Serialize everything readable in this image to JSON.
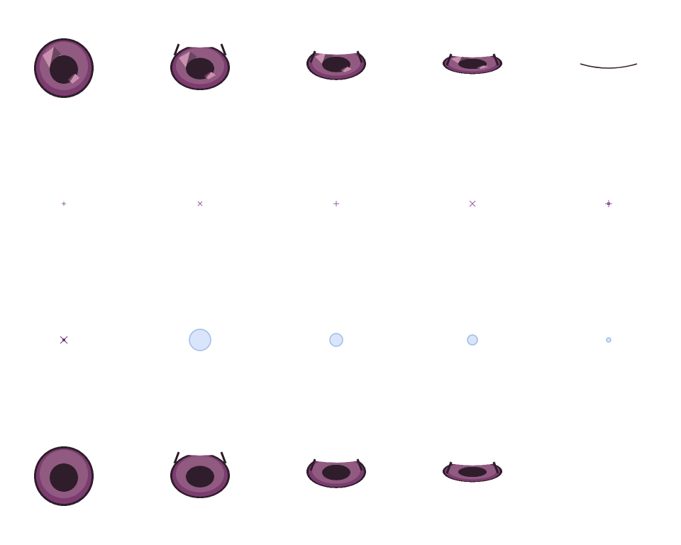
{
  "colors": {
    "outline": "#2e1e2a",
    "iris_outer": "#7c3c70",
    "iris_mid": "#915a80",
    "pupil": "#2f1d2b",
    "highlight_big": "#c891b0",
    "highlight_shadow": "#6e4560",
    "highlight_small": "#c98fb0",
    "sparkle": "#9a58a8",
    "sparkle_dark": "#6a3a70",
    "bubble_fill": "#d9e5fa",
    "bubble_stroke": "#9fbbe8",
    "background": "#ffffff"
  },
  "rows": [
    {
      "name": "eye-blink-highlighted",
      "frames": [
        {
          "kind": "eye",
          "open": 1.0,
          "highlights": true
        },
        {
          "kind": "eye",
          "open": 0.75,
          "highlights": true
        },
        {
          "kind": "eye",
          "open": 0.45,
          "highlights": true
        },
        {
          "kind": "eye",
          "open": 0.25,
          "highlights": true
        },
        {
          "kind": "closed"
        }
      ]
    },
    {
      "name": "sparkle-twinkle",
      "frames": [
        {
          "kind": "sparkle",
          "shape": "plus",
          "size": 1
        },
        {
          "kind": "sparkle",
          "shape": "cross",
          "size": 1
        },
        {
          "kind": "sparkle",
          "shape": "plus",
          "size": 2
        },
        {
          "kind": "sparkle",
          "shape": "cross",
          "size": 2
        },
        {
          "kind": "sparkle",
          "shape": "star",
          "size": 3
        }
      ]
    },
    {
      "name": "sparkle-and-bubbles",
      "frames": [
        {
          "kind": "sparkle",
          "shape": "xstar",
          "size": 3
        },
        {
          "kind": "bubble",
          "size": 15
        },
        {
          "kind": "bubble",
          "size": 9
        },
        {
          "kind": "bubble",
          "size": 7
        },
        {
          "kind": "bubble",
          "size": 3
        }
      ]
    },
    {
      "name": "eye-blink-plain",
      "frames": [
        {
          "kind": "eye",
          "open": 1.0,
          "highlights": false
        },
        {
          "kind": "eye",
          "open": 0.75,
          "highlights": false
        },
        {
          "kind": "eye",
          "open": 0.45,
          "highlights": false
        },
        {
          "kind": "eye",
          "open": 0.25,
          "highlights": false
        }
      ]
    }
  ]
}
